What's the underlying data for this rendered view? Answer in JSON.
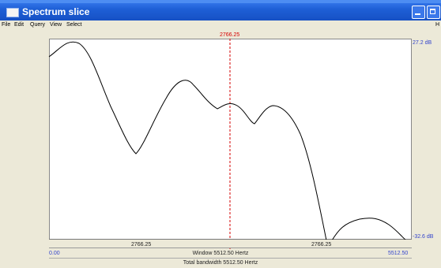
{
  "window": {
    "title": "Spectrum slice",
    "icon": "window-icon"
  },
  "menu": {
    "items": [
      "File",
      "Edit",
      "Query",
      "View",
      "Select"
    ],
    "right": "H"
  },
  "plot": {
    "cursor_label": "2766.25",
    "y_top_label": "27.2 dB",
    "y_bottom_label": "-32.6 dB",
    "x_tick_labels": [
      "2766.25",
      "2766.25"
    ],
    "x_start_label": "0.00",
    "x_end_label": "5512.50",
    "window_label": "Window 5512.50 Hertz",
    "total_label": "Total bandwidth 5512.50 Hertz",
    "cursor_color": "#d40000",
    "curve_color": "#000000"
  }
}
